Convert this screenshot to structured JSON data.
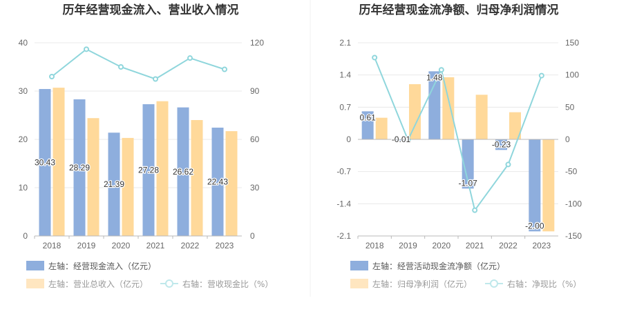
{
  "colors": {
    "bar_a": "#8eaedd",
    "bar_b": "#ffd99a",
    "line": "#8fd6dc",
    "grid": "#e8e8e8",
    "axis": "#b8b8b8"
  },
  "chart_data": [
    {
      "type": "bar",
      "title": "历年经营现金流入、营业收入情况",
      "categories": [
        "2018",
        "2019",
        "2020",
        "2021",
        "2022",
        "2023"
      ],
      "y_left": {
        "range": [
          0,
          40
        ],
        "ticks": [
          "0",
          "10",
          "20",
          "30",
          "40"
        ]
      },
      "y_right": {
        "range": [
          0,
          120
        ],
        "ticks": [
          "0",
          "30",
          "60",
          "90",
          "120"
        ]
      },
      "series": [
        {
          "name": "左轴：经营现金流入（亿元）",
          "axis": "left",
          "kind": "bar",
          "values": [
            30.43,
            28.29,
            21.39,
            27.28,
            26.62,
            22.43
          ],
          "labels": [
            "30.43",
            "28.29",
            "21.39",
            "27.28",
            "26.62",
            "22.43"
          ]
        },
        {
          "name": "左轴：营业总收入（亿元）",
          "axis": "left",
          "kind": "bar",
          "values": [
            30.7,
            24.4,
            20.3,
            27.9,
            24.0,
            21.7
          ]
        },
        {
          "name": "右轴：营收现金比（%）",
          "axis": "right",
          "kind": "line",
          "values": [
            99,
            116,
            105,
            97.5,
            110.5,
            103.5
          ]
        }
      ],
      "legend_placement": "bottom"
    },
    {
      "type": "bar",
      "title": "历年经营现金流净额、归母净利润情况",
      "categories": [
        "2018",
        "2019",
        "2020",
        "2021",
        "2022",
        "2023"
      ],
      "y_left": {
        "range": [
          -2.1,
          2.1
        ],
        "ticks": [
          "-2.1",
          "-1.4",
          "-0.7",
          "0",
          "0.7",
          "1.4",
          "2.1"
        ]
      },
      "y_right": {
        "range": [
          -150,
          150
        ],
        "ticks": [
          "-150",
          "-100",
          "-50",
          "0",
          "50",
          "100",
          "150"
        ]
      },
      "series": [
        {
          "name": "左轴：经营活动现金流净额（亿元）",
          "axis": "left",
          "kind": "bar",
          "values": [
            0.61,
            -0.01,
            1.48,
            -1.07,
            -0.23,
            -2.0
          ],
          "labels": [
            "0.61",
            "-0.01",
            "1.48",
            "-1.07",
            "-0.23",
            "-2.00"
          ]
        },
        {
          "name": "左轴：归母净利润（亿元）",
          "axis": "left",
          "kind": "bar",
          "values": [
            0.47,
            1.2,
            1.35,
            0.97,
            0.59,
            -2.0
          ]
        },
        {
          "name": "右轴：净现比（%）",
          "axis": "right",
          "kind": "line",
          "values": [
            127,
            -1,
            108,
            -110,
            -39,
            99
          ]
        }
      ],
      "legend_placement": "bottom"
    }
  ]
}
